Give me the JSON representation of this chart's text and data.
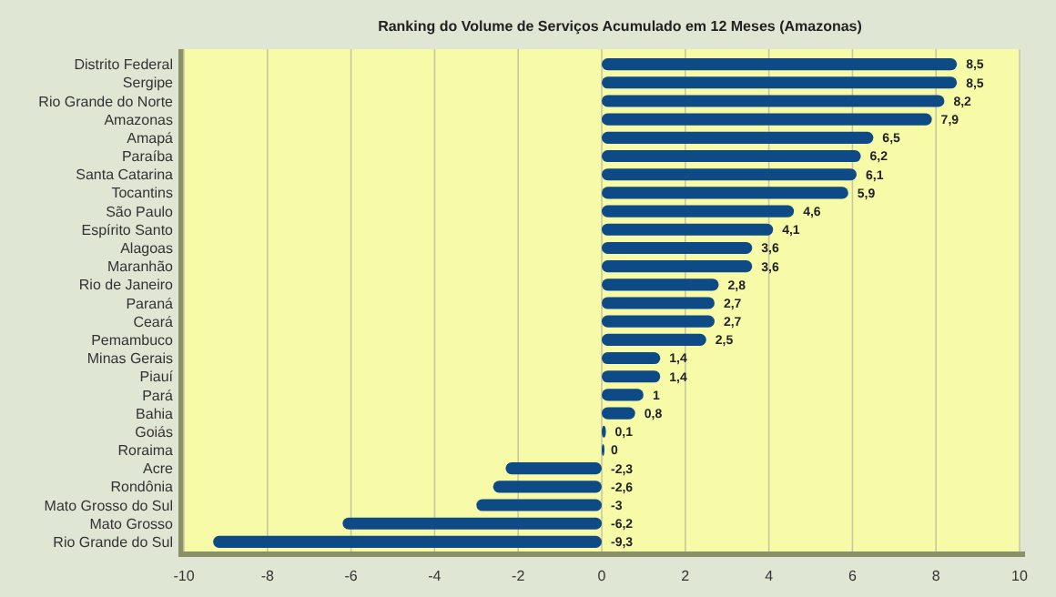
{
  "chart_data": {
    "type": "bar",
    "orientation": "horizontal",
    "title": "Ranking do Volume de Serviços Acumulado em 12 Meses (Amazonas)",
    "categories": [
      "Distrito Federal",
      "Sergipe",
      "Rio Grande do Norte",
      "Amazonas",
      "Amapá",
      "Paraíba",
      "Santa Catarina",
      "Tocantins",
      "São Paulo",
      "Espírito Santo",
      "Alagoas",
      "Maranhão",
      "Rio de Janeiro",
      "Paraná",
      "Ceará",
      "Pemambuco",
      "Minas Gerais",
      "Piauí",
      "Pará",
      "Bahia",
      "Goiás",
      "Roraima",
      "Acre",
      "Rondônia",
      "Mato Grosso do Sul",
      "Mato Grosso",
      "Rio Grande do Sul"
    ],
    "values": [
      8.5,
      8.5,
      8.2,
      7.9,
      6.5,
      6.2,
      6.1,
      5.9,
      4.6,
      4.1,
      3.6,
      3.6,
      2.8,
      2.7,
      2.7,
      2.5,
      1.4,
      1.4,
      1,
      0.8,
      0.1,
      0,
      -2.3,
      -2.6,
      -3,
      -6.2,
      -9.3
    ],
    "value_labels": [
      "8,5",
      "8,5",
      "8,2",
      "7,9",
      "6,5",
      "6,2",
      "6,1",
      "5,9",
      "4,6",
      "4,1",
      "3,6",
      "3,6",
      "2,8",
      "2,7",
      "2,7",
      "2,5",
      "1,4",
      "1,4",
      "1",
      "0,8",
      "0,1",
      "0",
      "-2,3",
      "-2,6",
      "-3",
      "-6,2",
      "-9,3"
    ],
    "color": "#0e4a86",
    "xlim": [
      -10,
      10
    ],
    "xticks": [
      -10,
      -8,
      -6,
      -4,
      -2,
      0,
      2,
      4,
      6,
      8,
      10
    ],
    "grid": "x"
  }
}
